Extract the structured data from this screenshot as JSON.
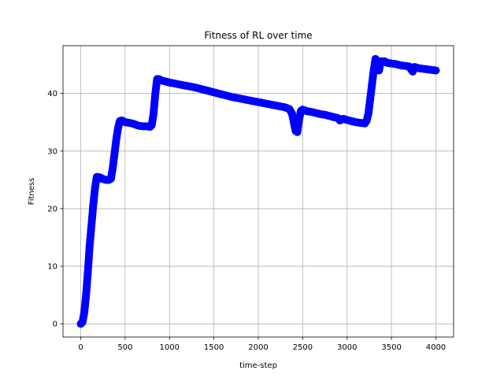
{
  "chart_data": {
    "type": "scatter",
    "title": "Fitness of RL over time",
    "xlabel": "time-step",
    "ylabel": "Fitness",
    "xlim": [
      -200,
      4200
    ],
    "ylim": [
      -2.3,
      48.3
    ],
    "xticks": [
      0,
      500,
      1000,
      1500,
      2000,
      2500,
      3000,
      3500,
      4000
    ],
    "yticks": [
      0,
      10,
      20,
      30,
      40
    ],
    "grid": true,
    "marker_color": "#0000ff",
    "series": [
      {
        "x": [
          0,
          20,
          40,
          60,
          80,
          100,
          120,
          140,
          160,
          180,
          200,
          220,
          240,
          260,
          280,
          300,
          320,
          340,
          360,
          380,
          400,
          420,
          440,
          460,
          480,
          500,
          550,
          600,
          650,
          700,
          750,
          780,
          800,
          820,
          840,
          860,
          880,
          900,
          950,
          1000,
          1100,
          1200,
          1300,
          1400,
          1500,
          1600,
          1700,
          1800,
          1900,
          2000,
          2100,
          2200,
          2300,
          2350,
          2380,
          2400,
          2420,
          2440,
          2460,
          2480,
          2500,
          2550,
          2600,
          2650,
          2700,
          2750,
          2800,
          2850,
          2900,
          2920,
          2940,
          2960,
          3000,
          3050,
          3100,
          3150,
          3200,
          3220,
          3240,
          3260,
          3280,
          3300,
          3320,
          3340,
          3360,
          3380,
          3400,
          3420,
          3440,
          3460,
          3500,
          3550,
          3600,
          3650,
          3700,
          3720,
          3740,
          3760,
          3780,
          3800,
          3850,
          3900,
          3950,
          4000
        ],
        "y": [
          0,
          0.3,
          2,
          5,
          9,
          13.5,
          17,
          20.5,
          23.5,
          25.5,
          25.5,
          25.4,
          25.2,
          25.1,
          25,
          25,
          25,
          25.2,
          27,
          29.5,
          32,
          34,
          35.2,
          35.3,
          35.2,
          35,
          34.9,
          34.7,
          34.4,
          34.3,
          34.3,
          34.2,
          34.5,
          36.5,
          40,
          42.5,
          42.5,
          42.3,
          42.1,
          41.9,
          41.6,
          41.3,
          41,
          40.6,
          40.2,
          39.8,
          39.4,
          39.1,
          38.8,
          38.5,
          38.2,
          37.9,
          37.6,
          37.3,
          36.5,
          35,
          33.5,
          33.3,
          35.5,
          37,
          37.2,
          36.9,
          36.8,
          36.6,
          36.4,
          36.3,
          36.1,
          35.9,
          35.7,
          35.3,
          35.5,
          35.6,
          35.4,
          35.2,
          35,
          34.9,
          34.8,
          35.2,
          36.5,
          39,
          41.5,
          44,
          46,
          45.5,
          44,
          45.6,
          45.5,
          45.6,
          45.4,
          45.3,
          45.2,
          45.1,
          44.9,
          44.8,
          44.7,
          44.2,
          43.8,
          44.6,
          44.5,
          44.4,
          44.3,
          44.2,
          44.1,
          44
        ]
      }
    ]
  }
}
